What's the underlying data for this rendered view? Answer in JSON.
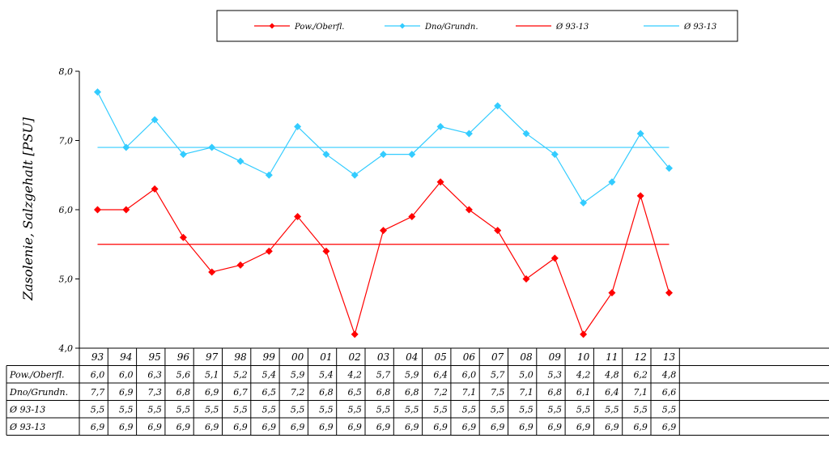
{
  "chart_data": {
    "type": "line",
    "ylabel": "Zasolenie, Salzgehalt [PSU]",
    "ylim": [
      4.0,
      8.0
    ],
    "yticks": [
      "4,0",
      "5,0",
      "6,0",
      "7,0",
      "8,0"
    ],
    "categories": [
      "93",
      "94",
      "95",
      "96",
      "97",
      "98",
      "99",
      "00",
      "01",
      "02",
      "03",
      "04",
      "05",
      "06",
      "07",
      "08",
      "09",
      "10",
      "11",
      "12",
      "13"
    ],
    "legend_position": "top-center",
    "series": [
      {
        "name": "Pow./Oberfl.",
        "color": "#ff0000",
        "marker": "diamond",
        "values": [
          6.0,
          6.0,
          6.3,
          5.6,
          5.1,
          5.2,
          5.4,
          5.9,
          5.4,
          4.2,
          5.7,
          5.9,
          6.4,
          6.0,
          5.7,
          5.0,
          5.3,
          4.2,
          4.8,
          6.2,
          4.8
        ],
        "labels": [
          "6,0",
          "6,0",
          "6,3",
          "5,6",
          "5,1",
          "5,2",
          "5,4",
          "5,9",
          "5,4",
          "4,2",
          "5,7",
          "5,9",
          "6,4",
          "6,0",
          "5,7",
          "5,0",
          "5,3",
          "4,2",
          "4,8",
          "6,2",
          "4,8"
        ]
      },
      {
        "name": "Dno/Grundn.",
        "color": "#33ccff",
        "marker": "diamond",
        "values": [
          7.7,
          6.9,
          7.3,
          6.8,
          6.9,
          6.7,
          6.5,
          7.2,
          6.8,
          6.5,
          6.8,
          6.8,
          7.2,
          7.1,
          7.5,
          7.1,
          6.8,
          6.1,
          6.4,
          7.1,
          6.6
        ],
        "labels": [
          "7,7",
          "6,9",
          "7,3",
          "6,8",
          "6,9",
          "6,7",
          "6,5",
          "7,2",
          "6,8",
          "6,5",
          "6,8",
          "6,8",
          "7,2",
          "7,1",
          "7,5",
          "7,1",
          "6,8",
          "6,1",
          "6,4",
          "7,1",
          "6,6"
        ]
      },
      {
        "name": "Ø 93-13",
        "color": "#ff0000",
        "marker": "none",
        "values": [
          5.5,
          5.5,
          5.5,
          5.5,
          5.5,
          5.5,
          5.5,
          5.5,
          5.5,
          5.5,
          5.5,
          5.5,
          5.5,
          5.5,
          5.5,
          5.5,
          5.5,
          5.5,
          5.5,
          5.5,
          5.5
        ],
        "labels": [
          "5,5",
          "5,5",
          "5,5",
          "5,5",
          "5,5",
          "5,5",
          "5,5",
          "5,5",
          "5,5",
          "5,5",
          "5,5",
          "5,5",
          "5,5",
          "5,5",
          "5,5",
          "5,5",
          "5,5",
          "5,5",
          "5,5",
          "5,5",
          "5,5"
        ]
      },
      {
        "name": "Ø 93-13",
        "color": "#33ccff",
        "marker": "none",
        "values": [
          6.9,
          6.9,
          6.9,
          6.9,
          6.9,
          6.9,
          6.9,
          6.9,
          6.9,
          6.9,
          6.9,
          6.9,
          6.9,
          6.9,
          6.9,
          6.9,
          6.9,
          6.9,
          6.9,
          6.9,
          6.9
        ],
        "labels": [
          "6,9",
          "6,9",
          "6,9",
          "6,9",
          "6,9",
          "6,9",
          "6,9",
          "6,9",
          "6,9",
          "6,9",
          "6,9",
          "6,9",
          "6,9",
          "6,9",
          "6,9",
          "6,9",
          "6,9",
          "6,9",
          "6,9",
          "6,9",
          "6,9"
        ]
      }
    ],
    "table_row_labels": [
      "Pow./Oberfl.",
      "Dno/Grundn.",
      "Ø 93-13",
      "Ø 93-13"
    ]
  }
}
